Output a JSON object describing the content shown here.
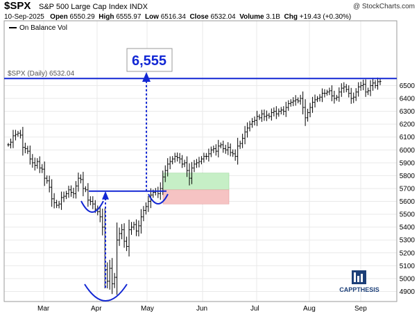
{
  "header": {
    "symbol": "$SPX",
    "name": "S&P 500 Large Cap Index",
    "exchange": "INDX",
    "credit": "@ StockCharts.com",
    "date": "10-Sep-2025",
    "open_label": "Open",
    "open": "6550.29",
    "high_label": "High",
    "high": "6555.97",
    "low_label": "Low",
    "low": "6516.34",
    "close_label": "Close",
    "close": "6532.04",
    "volume_label": "Volume",
    "volume": "3.1B",
    "chg_label": "Chg",
    "chg": "+19.43 (+0.30%)"
  },
  "legend": {
    "obv": "On Balance Vol",
    "price": "$SPX (Daily) 6532.04"
  },
  "annotation": {
    "target": "6,555"
  },
  "logo": {
    "text": "CAPPTHESIS"
  },
  "colors": {
    "price": "#000000",
    "annotation": "#1227d4",
    "green_box": "#c6efc6",
    "red_box": "#f6c3c3",
    "grid": "#e9e9e9",
    "logo": "#1c3f78"
  },
  "chart_data": {
    "type": "ohlc",
    "series_name": "$SPX (Daily)",
    "ylim": [
      4800,
      6600
    ],
    "yticks": [
      4900,
      5000,
      5100,
      5200,
      5300,
      5400,
      5500,
      5600,
      5700,
      5800,
      5900,
      6000,
      6100,
      6200,
      6300,
      6400,
      6500
    ],
    "xtick_labels": [
      "Mar",
      "Apr",
      "May",
      "Jun",
      "Jul",
      "Aug",
      "Sep"
    ],
    "resistance_level": 5680,
    "target_level": 6555,
    "green_box": [
      5690,
      5820
    ],
    "red_box": [
      5580,
      5690
    ],
    "closes": [
      6040,
      6060,
      6110,
      6120,
      6130,
      6115,
      6020,
      6010,
      5990,
      5930,
      5900,
      5880,
      5910,
      5860,
      5850,
      5780,
      5760,
      5710,
      5620,
      5590,
      5570,
      5580,
      5630,
      5640,
      5660,
      5690,
      5670,
      5660,
      5720,
      5780,
      5770,
      5700,
      5690,
      5610,
      5600,
      5580,
      5540,
      5520,
      5480,
      5400,
      5070,
      4980,
      5080,
      4960,
      5010,
      5300,
      5350,
      5380,
      5290,
      5250,
      5380,
      5400,
      5420,
      5370,
      5410,
      5480,
      5530,
      5560,
      5600,
      5650,
      5670,
      5680,
      5660,
      5700,
      5790,
      5840,
      5890,
      5910,
      5930,
      5950,
      5940,
      5930,
      5890,
      5900,
      5840,
      5780,
      5860,
      5890,
      5900,
      5910,
      5930,
      5950,
      5950,
      5970,
      6000,
      6010,
      5990,
      6030,
      6040,
      6010,
      6000,
      6020,
      5980,
      5970,
      5950,
      6030,
      6050,
      6090,
      6140,
      6170,
      6200,
      6220,
      6230,
      6260,
      6250,
      6280,
      6260,
      6270,
      6260,
      6290,
      6300,
      6280,
      6300,
      6310,
      6300,
      6330,
      6360,
      6370,
      6380,
      6390,
      6380,
      6400,
      6330,
      6250,
      6290,
      6330,
      6370,
      6390,
      6400,
      6410,
      6440,
      6440,
      6450,
      6460,
      6420,
      6400,
      6410,
      6450,
      6480,
      6490,
      6470,
      6440,
      6400,
      6410,
      6450,
      6490,
      6500,
      6510,
      6450,
      6460,
      6500,
      6520,
      6500,
      6530,
      6532
    ]
  }
}
